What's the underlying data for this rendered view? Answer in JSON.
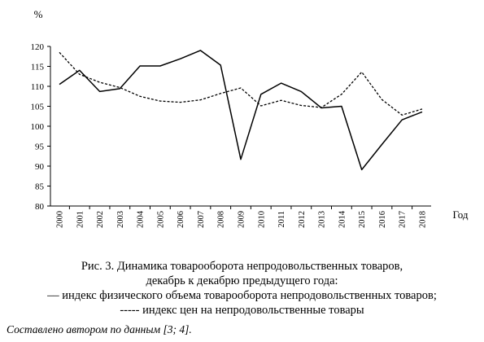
{
  "chart_data": {
    "type": "line",
    "ylabel": "%",
    "xlabel": "Год",
    "ylim": [
      80,
      120
    ],
    "yticks": [
      80,
      85,
      90,
      95,
      100,
      105,
      110,
      115,
      120
    ],
    "grid": false,
    "categories": [
      "2000",
      "2001",
      "2002",
      "2003",
      "2004",
      "2005",
      "2006",
      "2007",
      "2008",
      "2009",
      "2010",
      "2011",
      "2012",
      "2013",
      "2014",
      "2015",
      "2016",
      "2017",
      "2018"
    ],
    "series": [
      {
        "style": "solid",
        "values": [
          110.5,
          114.0,
          108.7,
          109.4,
          115.1,
          115.1,
          116.9,
          119.0,
          115.3,
          91.7,
          108.0,
          110.8,
          108.7,
          104.6,
          105.0,
          89.1,
          95.4,
          101.6,
          103.6
        ]
      },
      {
        "style": "dashed",
        "values": [
          118.5,
          113.0,
          111.0,
          109.7,
          107.5,
          106.3,
          106.0,
          106.6,
          108.2,
          109.6,
          105.1,
          106.5,
          105.2,
          104.7,
          108.0,
          113.6,
          106.7,
          102.8,
          104.3
        ]
      }
    ]
  },
  "caption": {
    "line1": "Рис. 3. Динамика товарооборота непродовольственных товаров,",
    "line2": "декабрь к декабрю предыдущего года:",
    "legend_solid_symbol": "––",
    "legend_solid_text": " индекс физического объема товарооборота непродовольственных товаров;",
    "legend_dashed_symbol": "-----",
    "legend_dashed_text": " индекс цен на непродовольственные товары"
  },
  "source": "Составлено автором по данным [3; 4]."
}
